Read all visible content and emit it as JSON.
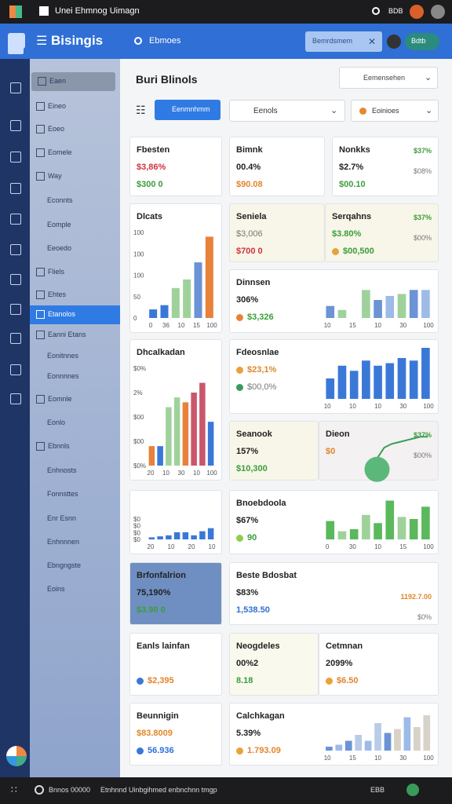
{
  "topbar": {
    "title": "Unei Ehmnog Uimagn",
    "status": "BDB"
  },
  "header": {
    "brand": "Bisingis",
    "search": "Ebmoes",
    "button": "Bemrdsmem",
    "chip": "Bdtb"
  },
  "sidebar": {
    "items": [
      "Eaen",
      "Eineo",
      "Eoeo",
      "Eomele",
      "Way",
      "Econnts",
      "Eomple",
      "Eeoedo",
      "Fliels",
      "Ehtes",
      "Etanolos",
      "Eanni Etans",
      "Eonitnnes",
      "Eonnnnes",
      "Eomnle",
      "Eonlo",
      "Ebnnls",
      "Enhnosts",
      "Fonnsttes",
      "Enr Esnn",
      "Enhnnnen",
      "Ebngngste",
      "Eoins"
    ],
    "active": 10
  },
  "toolbar": {
    "title": "Buri Blinols",
    "select": "Eemensehen",
    "button": "Eenmnhmm",
    "filter1": "Eenols",
    "filter2": "Eoinioes"
  },
  "cards": [
    {
      "title": "Fbesten",
      "lines": [
        {
          "text": "$3,86%",
          "tone": "red"
        },
        {
          "text": "$300 0",
          "tone": "green"
        }
      ]
    },
    {
      "title": "Dlcats",
      "chart": {
        "kind": "bar",
        "ylim": [
          0,
          100
        ],
        "values": [
          10,
          15,
          35,
          45,
          65,
          95
        ],
        "colors": [
          "#3a78d8",
          "#3a78d8",
          "#9fd29b",
          "#9fd29b",
          "#6b93d6",
          "#e8823a"
        ],
        "y_labels": [
          "100",
          "100",
          "100",
          "50",
          "0"
        ],
        "x_labels": [
          "0",
          "36",
          "10",
          "15",
          "100"
        ]
      }
    },
    {
      "title": "Dhcalkadan",
      "chart": {
        "kind": "bar",
        "ylim": [
          0,
          100
        ],
        "values": [
          20,
          20,
          60,
          70,
          65,
          75,
          85,
          45
        ],
        "colors": [
          "#e8823a",
          "#3a78d8",
          "#9fd29b",
          "#9fd29b",
          "#e8823a",
          "#c9566a",
          "#c9566a",
          "#3a78d8"
        ],
        "y_labels": [
          "$0%",
          "2%",
          "$00",
          "$00",
          "$0%"
        ],
        "x_labels": [
          "20",
          "10",
          "30",
          "10",
          "100"
        ]
      }
    },
    {
      "title": "",
      "chart": {
        "kind": "bar",
        "ylim": [
          0,
          100
        ],
        "values": [
          10,
          15,
          20,
          35,
          35,
          20,
          40,
          55
        ],
        "colors": [
          "#3a78d8",
          "#3a78d8",
          "#3a78d8",
          "#3a78d8",
          "#3a78d8",
          "#3a78d8",
          "#3a78d8",
          "#3a78d8"
        ],
        "y_labels": [
          "$0",
          "$0",
          "$0",
          "$0"
        ],
        "x_labels": [
          "20",
          "10",
          "20",
          "10"
        ]
      }
    },
    {
      "title": "Brfonfalrion",
      "fill": "#6f8fc2",
      "lines": [
        {
          "text": "75,190%",
          "tone": "dark"
        },
        {
          "text": "$3.90 0",
          "tone": "green"
        }
      ]
    },
    {
      "title": "Eanls lainfan",
      "lines": [
        {
          "text": "",
          "tone": "gray"
        },
        {
          "text": "$2,395",
          "tone": "orange",
          "dot": "#3a78d8"
        }
      ]
    },
    {
      "title": "Beunnigin",
      "lines": [
        {
          "text": "$83.8009",
          "tone": "orange"
        },
        {
          "text": "56.936",
          "tone": "blue",
          "dot": "#3a78d8"
        }
      ]
    },
    {
      "title": "Bimnk",
      "lines": [
        {
          "text": "00.4%",
          "tone": "dark"
        },
        {
          "text": "$90.08",
          "tone": "orange"
        }
      ]
    },
    {
      "title": "Nonkks",
      "lines": [
        {
          "text": "$2.7%",
          "tone": "dark"
        },
        {
          "text": "$00.10",
          "tone": "green"
        }
      ],
      "aside": [
        {
          "text": "$37%",
          "tone": "green"
        },
        {
          "text": "$08%",
          "tone": "gray"
        }
      ]
    },
    {
      "title": "Seniela",
      "fill": "#f7f6e8",
      "lines": [
        {
          "text": "$3,006",
          "tone": "gray"
        },
        {
          "text": "$700 0",
          "tone": "red"
        }
      ]
    },
    {
      "title": "Serqahns",
      "fill": "#f7f6e8",
      "lines": [
        {
          "text": "$3.80%",
          "tone": "green"
        },
        {
          "text": "$00,500",
          "tone": "green",
          "dot": "#e8a23a"
        }
      ],
      "aside": [
        {
          "text": "$37%",
          "tone": "green"
        },
        {
          "text": "$00%",
          "tone": "gray"
        }
      ]
    },
    {
      "title": "Dinnsen",
      "lines": [
        {
          "text": "306%",
          "tone": "dark"
        },
        {
          "text": "$3,326",
          "tone": "green",
          "dot": "#e8823a"
        }
      ],
      "chart": {
        "kind": "bar",
        "ylim": [
          0,
          100
        ],
        "values": [
          30,
          20,
          0,
          70,
          45,
          55,
          60,
          70,
          70
        ],
        "colors": [
          "#6b93d6",
          "#9fd29b",
          "#9fd29b",
          "#9fd29b",
          "#6b93d6",
          "#9dbbe8",
          "#9fd29b",
          "#6b93d6",
          "#9dbbe8"
        ],
        "x_labels": [
          "10",
          "15",
          "10",
          "30",
          "100"
        ]
      }
    },
    {
      "title": "Fdeosnlae",
      "lines": [
        {
          "text": "$23,1%",
          "tone": "orange",
          "dot": "#e8a23a"
        },
        {
          "text": "$00,0%",
          "tone": "gray",
          "dot": "#3a9a5a"
        }
      ],
      "chart": {
        "kind": "bar",
        "ylim": [
          0,
          100
        ],
        "values": [
          40,
          65,
          55,
          75,
          65,
          70,
          80,
          75,
          100
        ],
        "colors": [
          "#3a78d8",
          "#3a78d8",
          "#3a78d8",
          "#3a78d8",
          "#3a78d8",
          "#3a78d8",
          "#3a78d8",
          "#3a78d8",
          "#3a78d8"
        ],
        "x_labels": [
          "10",
          "10",
          "10",
          "30",
          "100"
        ]
      }
    },
    {
      "title": "Seanook",
      "fill": "#f7f6e8",
      "lines": [
        {
          "text": "157%",
          "tone": "dark"
        },
        {
          "text": "$10,300",
          "tone": "green"
        }
      ]
    },
    {
      "title": "Dieon",
      "fill": "#f3f1f1",
      "lines": [
        {
          "text": "$0",
          "tone": "orange"
        },
        {
          "text": "",
          "tone": "gray"
        }
      ],
      "aside": [
        {
          "text": "$37%",
          "tone": "green"
        },
        {
          "text": "$00%",
          "tone": "gray"
        }
      ],
      "chart": {
        "kind": "line",
        "ylim": [
          0,
          100
        ],
        "values": [
          20,
          50,
          60,
          65,
          70,
          75,
          80,
          80
        ],
        "colors": [
          "#3a9a5a"
        ]
      }
    },
    {
      "title": "Bnoebdoola",
      "lines": [
        {
          "text": "$67%",
          "tone": "dark"
        },
        {
          "text": "90",
          "tone": "green",
          "dot": "#8ccf4a"
        }
      ],
      "chart": {
        "kind": "bar",
        "ylim": [
          0,
          100
        ],
        "values": [
          45,
          20,
          25,
          60,
          40,
          95,
          55,
          50,
          80
        ],
        "colors": [
          "#5cb85c",
          "#9fd29b",
          "#5cb85c",
          "#9fd29b",
          "#5cb85c",
          "#5cb85c",
          "#9fd29b",
          "#5cb85c",
          "#5cb85c"
        ],
        "x_labels": [
          "0",
          "30",
          "10",
          "15",
          "100"
        ]
      }
    },
    {
      "title": "Beste Bdosbat",
      "lines": [
        {
          "text": "$83%",
          "tone": "dark"
        },
        {
          "text": "1,538.50",
          "tone": "blue"
        }
      ],
      "aside": [
        {
          "text": "",
          "tone": "gray"
        },
        {
          "text": "1192.7.00",
          "tone": "orange"
        },
        {
          "text": "$0%",
          "tone": "gray"
        }
      ]
    },
    {
      "title": "Neogdeles",
      "fill": "#f9f9ee",
      "lines": [
        {
          "text": "00%2",
          "tone": "dark"
        },
        {
          "text": "8.18",
          "tone": "green"
        }
      ]
    },
    {
      "title": "Cetmnan",
      "lines": [
        {
          "text": "2099%",
          "tone": "dark"
        },
        {
          "text": "$6.50",
          "tone": "orange",
          "dot": "#e8a23a"
        }
      ]
    },
    {
      "title": "Calchkagan",
      "lines": [
        {
          "text": "5.39%",
          "tone": "dark"
        },
        {
          "text": "1.793.09",
          "tone": "orange",
          "dot": "#e8a23a"
        }
      ],
      "chart": {
        "kind": "bar",
        "ylim": [
          0,
          100
        ],
        "values": [
          10,
          15,
          25,
          40,
          25,
          70,
          45,
          55,
          85,
          60,
          90
        ],
        "colors": [
          "#6b93d6",
          "#9dbbe8",
          "#6b93d6",
          "#b8cce8",
          "#9dbbe8",
          "#b8cce8",
          "#6b93d6",
          "#d8d2c8",
          "#9dbbe8",
          "#d8d2c8",
          "#d8d2c8"
        ],
        "x_labels": [
          "10",
          "15",
          "10",
          "30",
          "100"
        ]
      }
    }
  ],
  "bottom": {
    "left": "Bnnos 00000",
    "center": "Etnhnnd Uinbgihmed enbnchnn tmgp",
    "right": "EBB"
  }
}
